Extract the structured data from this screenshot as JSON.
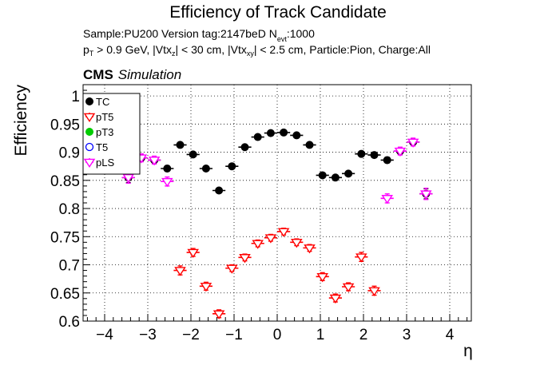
{
  "header": {
    "title": "Efficiency of Track Candidate",
    "line1_a": "Sample:PU200   Version tag:2147beD  N",
    "line1_sub": "evt",
    "line1_b": ":1000",
    "line2": [
      {
        "t": "p",
        "s": "T"
      },
      {
        "t": " > 0.9 GeV, |Vtx",
        "s": "z"
      },
      {
        "t": "| < 30 cm, |Vtx",
        "s": "xy"
      },
      {
        "t": "| < 2.5 cm, Particle:Pion, Charge:All",
        "s": ""
      }
    ],
    "cms": "CMS",
    "simulation": "Simulation"
  },
  "chart_data": {
    "type": "scatter",
    "title": "Efficiency of Track Candidate",
    "xlabel": "η",
    "ylabel": "Efficiency",
    "xlim": [
      -4.5,
      4.5
    ],
    "ylim": [
      0.6,
      1.02
    ],
    "xticks": [
      -4,
      -3,
      -2,
      -1,
      0,
      1,
      2,
      3,
      4
    ],
    "xtick_labels": [
      "−4",
      "−3",
      "−2",
      "−1",
      "0",
      "1",
      "2",
      "3",
      "4"
    ],
    "yticks": [
      0.6,
      0.65,
      0.7,
      0.75,
      0.8,
      0.85,
      0.9,
      0.95,
      1
    ],
    "ytick_labels": [
      "0.6",
      "0.65",
      "0.7",
      "0.75",
      "0.8",
      "0.85",
      "0.9",
      "0.95",
      "1"
    ],
    "grid": true,
    "legend_position": "top-left",
    "bin_halfwidth": 0.15,
    "series": [
      {
        "name": "TC",
        "color": "#000000",
        "marker": "filled-circle",
        "x": [
          -3.45,
          -3.15,
          -2.85,
          -2.55,
          -2.25,
          -1.95,
          -1.65,
          -1.35,
          -1.05,
          -0.75,
          -0.45,
          -0.15,
          0.15,
          0.45,
          0.75,
          1.05,
          1.35,
          1.65,
          1.95,
          2.25,
          2.55,
          2.85,
          3.15,
          3.45
        ],
        "y": [
          0.855,
          0.89,
          0.886,
          0.871,
          0.913,
          0.896,
          0.871,
          0.832,
          0.875,
          0.909,
          0.927,
          0.934,
          0.935,
          0.93,
          0.913,
          0.859,
          0.855,
          0.862,
          0.897,
          0.895,
          0.886,
          0.902,
          0.918,
          0.826
        ],
        "yerr": [
          0.009,
          0.005,
          0.005,
          0.005,
          0.004,
          0.004,
          0.004,
          0.004,
          0.004,
          0.003,
          0.003,
          0.003,
          0.003,
          0.003,
          0.003,
          0.004,
          0.004,
          0.004,
          0.004,
          0.004,
          0.005,
          0.005,
          0.005,
          0.009
        ]
      },
      {
        "name": "pT5",
        "color": "#ff0000",
        "marker": "open-triangle-down",
        "x": [
          -2.25,
          -1.95,
          -1.65,
          -1.35,
          -1.05,
          -0.75,
          -0.45,
          -0.15,
          0.15,
          0.45,
          0.75,
          1.05,
          1.35,
          1.65,
          1.95,
          2.25
        ],
        "y": [
          0.69,
          0.722,
          0.662,
          0.613,
          0.694,
          0.713,
          0.738,
          0.748,
          0.759,
          0.74,
          0.73,
          0.679,
          0.641,
          0.661,
          0.714,
          0.654
        ],
        "yerr": [
          0.008,
          0.007,
          0.007,
          0.007,
          0.006,
          0.006,
          0.006,
          0.006,
          0.006,
          0.006,
          0.006,
          0.007,
          0.007,
          0.007,
          0.008,
          0.008
        ]
      },
      {
        "name": "pT3",
        "color": "#00cc00",
        "marker": "filled-circle",
        "x": [],
        "y": [],
        "yerr": []
      },
      {
        "name": "T5",
        "color": "#0000ff",
        "marker": "open-circle",
        "x": [],
        "y": [],
        "yerr": []
      },
      {
        "name": "pLS",
        "color": "#ff00ff",
        "marker": "open-triangle-down",
        "x": [
          -3.45,
          -3.15,
          -2.85,
          -2.55,
          2.55,
          2.85,
          3.15,
          3.45
        ],
        "y": [
          0.855,
          0.89,
          0.886,
          0.848,
          0.818,
          0.902,
          0.918,
          0.826
        ],
        "yerr": [
          0.01,
          0.007,
          0.007,
          0.008,
          0.008,
          0.007,
          0.007,
          0.01
        ]
      }
    ]
  }
}
